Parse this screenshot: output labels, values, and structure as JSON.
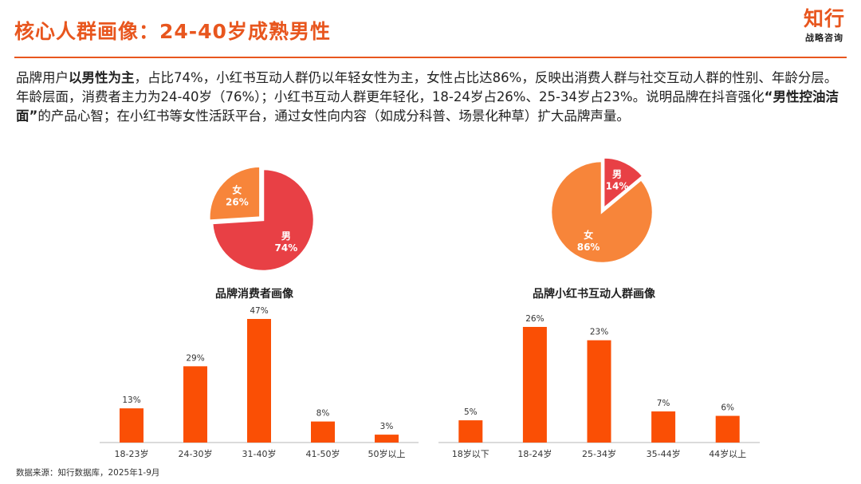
{
  "header": {
    "title": "核心人群画像：24-40岁成熟男性",
    "logo_main": "知行",
    "logo_sub": "战略咨询"
  },
  "intro": {
    "p1": "品牌用户",
    "b1": "以男性为主",
    "p2": "，占比74%，小红书互动人群仍以年轻女性为主，女性占比达86%，反映出消费人群与社交互动人群的性别、年龄分层。年龄层面，消费者主力为24-40岁（76%）；小红书互动人群更年轻化，18-24岁占26%、25-34岁占23%。说明品牌在抖音强化",
    "b2": "“男性控油洁面”",
    "p3": "的产品心智；在小红书等女性活跃平台，通过女性向内容（如成分科普、场景化种草）扩大品牌声量。"
  },
  "colors": {
    "accent": "#e8561e",
    "pie_red": "#e84045",
    "pie_orange": "#f7853a",
    "bar": "#fa4f05",
    "axis": "#cfcfcf"
  },
  "chart_data": [
    {
      "type": "pie",
      "title": "",
      "slices": [
        {
          "name": "男",
          "value": 74,
          "label": "74%",
          "color": "#e84045"
        },
        {
          "name": "女",
          "value": 26,
          "label": "26%",
          "color": "#f7853a"
        }
      ]
    },
    {
      "type": "pie",
      "title": "",
      "slices": [
        {
          "name": "男",
          "value": 14,
          "label": "14%",
          "color": "#e84045"
        },
        {
          "name": "女",
          "value": 86,
          "label": "86%",
          "color": "#f7853a"
        }
      ]
    },
    {
      "type": "bar",
      "title": "品牌消费者画像",
      "categories": [
        "18-23岁",
        "24-30岁",
        "31-40岁",
        "41-50岁",
        "50岁以上"
      ],
      "values": [
        13,
        29,
        47,
        8,
        3
      ],
      "labels": [
        "13%",
        "29%",
        "47%",
        "8%",
        "3%"
      ],
      "ylim": [
        0,
        47
      ],
      "xlabel": "",
      "ylabel": "",
      "unit": "%"
    },
    {
      "type": "bar",
      "title": "品牌小红书互动人群画像",
      "categories": [
        "18岁以下",
        "18-24岁",
        "25-34岁",
        "35-44岁",
        "44岁以上"
      ],
      "values": [
        5,
        26,
        23,
        7,
        6
      ],
      "labels": [
        "5%",
        "26%",
        "23%",
        "7%",
        "6%"
      ],
      "ylim": [
        0,
        26
      ],
      "xlabel": "",
      "ylabel": "",
      "unit": "%"
    }
  ],
  "footer": {
    "source": "数据来源：知行数据库，2025年1-9月"
  }
}
